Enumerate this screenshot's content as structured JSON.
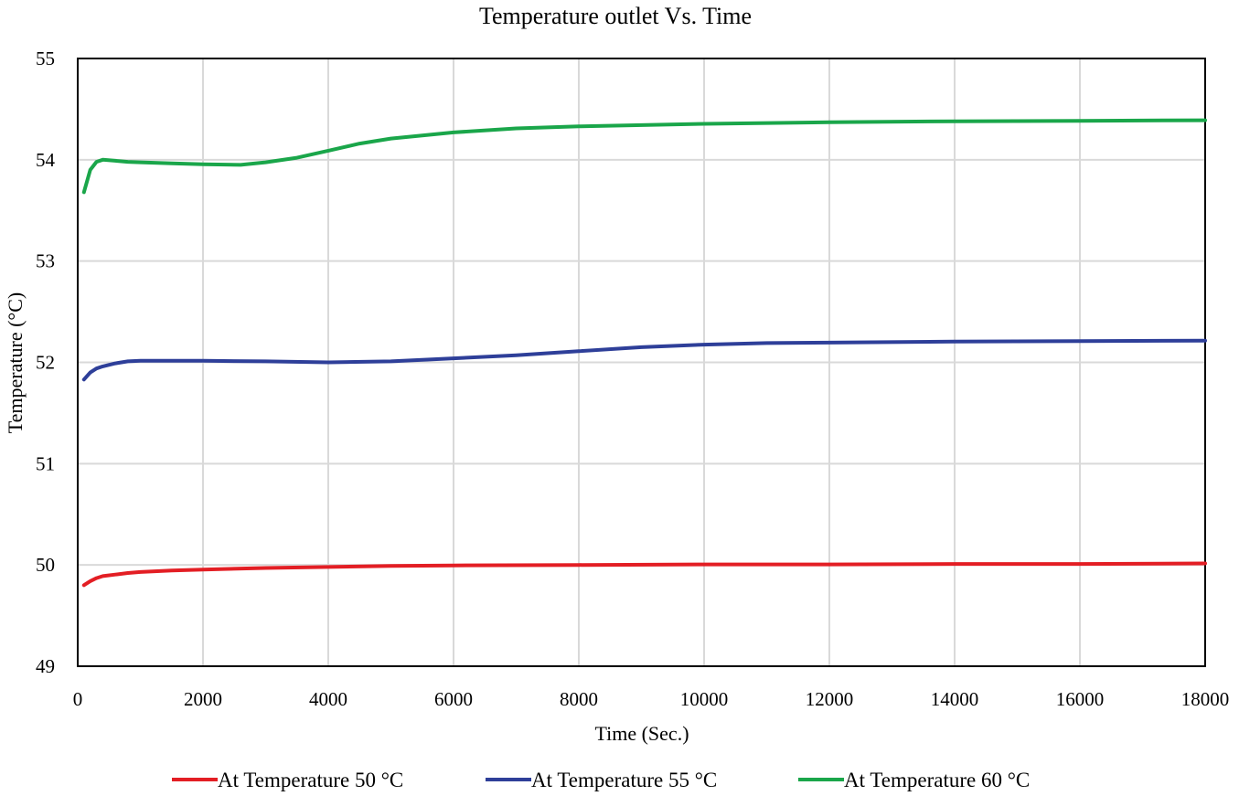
{
  "chart_data": {
    "type": "line",
    "title": "Temperature outlet Vs. Time",
    "xlabel": "Time (Sec.)",
    "ylabel": "Temperature (°C)",
    "xlim": [
      0,
      18000
    ],
    "ylim": [
      49,
      55
    ],
    "xticks": [
      0,
      2000,
      4000,
      6000,
      8000,
      10000,
      12000,
      14000,
      16000,
      18000
    ],
    "yticks": [
      49,
      50,
      51,
      52,
      53,
      54,
      55
    ],
    "grid": true,
    "legend_position": "bottom",
    "series": [
      {
        "name": "At Temperature 50 °C",
        "color": "#e31e24",
        "x": [
          100,
          200,
          300,
          400,
          600,
          800,
          1000,
          1500,
          2000,
          3000,
          4000,
          5000,
          6000,
          8000,
          10000,
          12000,
          14000,
          16000,
          18000
        ],
        "values": [
          49.8,
          49.84,
          49.87,
          49.89,
          49.905,
          49.92,
          49.93,
          49.945,
          49.955,
          49.97,
          49.98,
          49.99,
          49.995,
          50.0,
          50.005,
          50.005,
          50.01,
          50.01,
          50.015
        ]
      },
      {
        "name": "At Temperature 55 °C",
        "color": "#2e3f99",
        "x": [
          100,
          200,
          300,
          400,
          600,
          800,
          1000,
          2000,
          3000,
          4000,
          5000,
          6000,
          7000,
          8000,
          9000,
          10000,
          11000,
          12000,
          14000,
          16000,
          18000
        ],
        "values": [
          51.83,
          51.9,
          51.94,
          51.96,
          51.99,
          52.01,
          52.015,
          52.015,
          52.01,
          52.0,
          52.01,
          52.04,
          52.07,
          52.11,
          52.15,
          52.175,
          52.19,
          52.195,
          52.205,
          52.21,
          52.215
        ]
      },
      {
        "name": "At Temperature 60 °C",
        "color": "#1aa64a",
        "x": [
          100,
          200,
          300,
          400,
          600,
          800,
          1000,
          1500,
          2000,
          2600,
          3000,
          3500,
          4000,
          4500,
          5000,
          6000,
          7000,
          8000,
          10000,
          12000,
          14000,
          16000,
          18000
        ],
        "values": [
          53.68,
          53.9,
          53.98,
          54.0,
          53.99,
          53.98,
          53.975,
          53.965,
          53.955,
          53.95,
          53.975,
          54.02,
          54.09,
          54.16,
          54.21,
          54.27,
          54.31,
          54.33,
          54.355,
          54.37,
          54.38,
          54.385,
          54.39
        ]
      }
    ]
  }
}
